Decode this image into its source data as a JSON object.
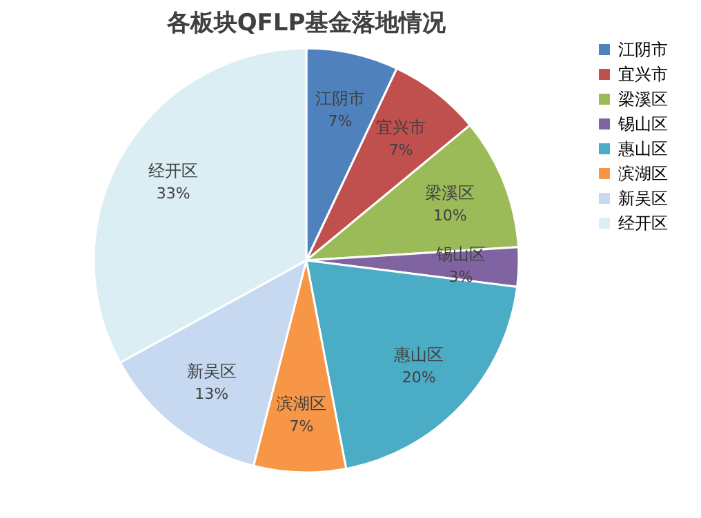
{
  "chart_data": {
    "type": "pie",
    "title": "各板块QFLP基金落地情况",
    "categories": [
      "江阴市",
      "宜兴市",
      "梁溪区",
      "锡山区",
      "惠山区",
      "滨湖区",
      "新吴区",
      "经开区"
    ],
    "values": [
      7,
      7,
      10,
      3,
      20,
      7,
      13,
      33
    ],
    "colors": [
      "#4f81bd",
      "#c0504d",
      "#9bbb59",
      "#8064a2",
      "#4bacc6",
      "#f79646",
      "#c6d9f1",
      "#dbeef4"
    ],
    "data_labels": true,
    "value_labels": [
      "7%",
      "7%",
      "10%",
      "3%",
      "20%",
      "7%",
      "13%",
      "33%"
    ],
    "legend": "right"
  }
}
